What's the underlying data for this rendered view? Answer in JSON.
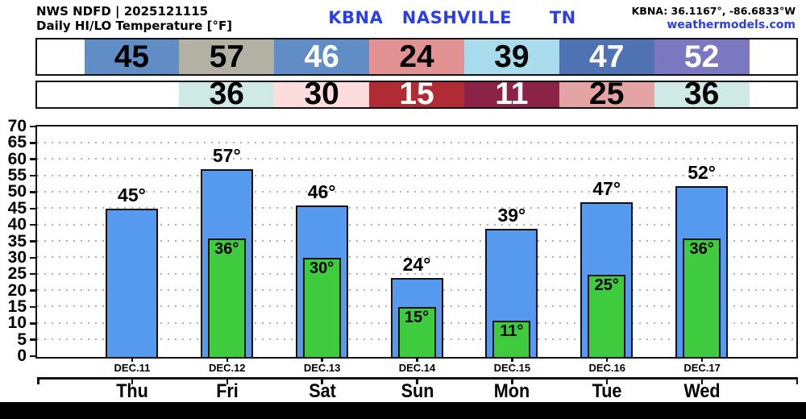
{
  "header": {
    "model_line": "NWS NDFD | 2025121115",
    "subtitle": "Daily HI/LO Temperature [°F]",
    "station_title": "KBNA   NASHVILLE      TN",
    "coords": "KBNA: 36.1167°, -86.6833°W",
    "site": "weathermodels.com",
    "accent_blue": "#2b3fe8"
  },
  "strips": {
    "hi": [
      {
        "label": "45",
        "bg": "#608dc5",
        "fg": "#000000"
      },
      {
        "label": "57",
        "bg": "#b3b1a4",
        "fg": "#000000"
      },
      {
        "label": "46",
        "bg": "#608dc5",
        "fg": "#ffffff"
      },
      {
        "label": "24",
        "bg": "#e39293",
        "fg": "#000000"
      },
      {
        "label": "39",
        "bg": "#a8dcec",
        "fg": "#000000"
      },
      {
        "label": "47",
        "bg": "#4e72b2",
        "fg": "#ffffff"
      },
      {
        "label": "52",
        "bg": "#7c77c1",
        "fg": "#ffffff"
      }
    ],
    "lo": [
      {
        "label": "36",
        "bg": "#cfeae6",
        "fg": "#000000"
      },
      {
        "label": "30",
        "bg": "#fcdcdc",
        "fg": "#000000"
      },
      {
        "label": "15",
        "bg": "#b12b35",
        "fg": "#ffffff"
      },
      {
        "label": "11",
        "bg": "#8d2247",
        "fg": "#ffffff"
      },
      {
        "label": "25",
        "bg": "#e5a4a4",
        "fg": "#000000"
      },
      {
        "label": "36",
        "bg": "#cfeae6",
        "fg": "#000000"
      }
    ]
  },
  "chart_data": {
    "type": "bar",
    "categories": [
      "Thu",
      "Fri",
      "Sat",
      "Sun",
      "Mon",
      "Tue",
      "Wed"
    ],
    "dates": [
      "DEC.11",
      "DEC.12",
      "DEC.13",
      "DEC.14",
      "DEC.15",
      "DEC.16",
      "DEC.17"
    ],
    "series": [
      {
        "name": "HI",
        "values": [
          45,
          57,
          46,
          24,
          39,
          47,
          52
        ],
        "color": "#559aee",
        "label_suffix": "°"
      },
      {
        "name": "LO",
        "values": [
          null,
          36,
          30,
          15,
          11,
          25,
          36
        ],
        "color": "#3ecb3e",
        "label_suffix": "°"
      }
    ],
    "ylim": [
      0,
      70
    ],
    "ytick_step": 5,
    "yticks": [
      0,
      5,
      10,
      15,
      20,
      25,
      30,
      35,
      40,
      45,
      50,
      55,
      60,
      65,
      70
    ],
    "grid": "dotted",
    "grid_color": "#b0b0b0"
  }
}
